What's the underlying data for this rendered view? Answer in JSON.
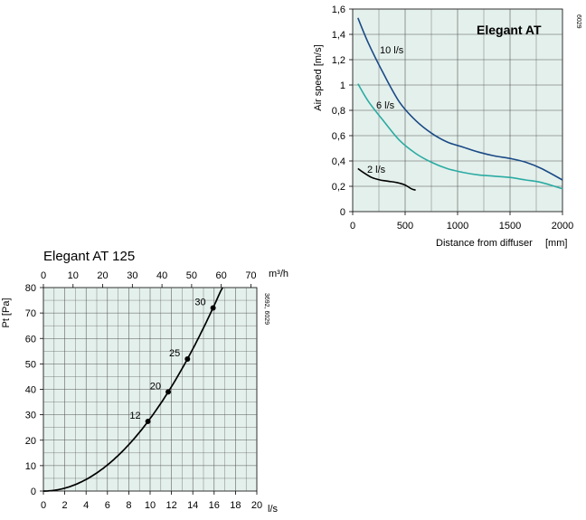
{
  "chart_data": [
    {
      "type": "line",
      "title": "Elegant AT",
      "side_code": "6029",
      "xlabel": "Distance from diffuser",
      "xunit": "[mm]",
      "ylabel": "Air speed [m/s]",
      "xlim": [
        0,
        2000
      ],
      "ylim": [
        0,
        1.6
      ],
      "xticks": [
        "0",
        "500",
        "1000",
        "1500",
        "2000"
      ],
      "yticks": [
        "0",
        "0,2",
        "0,4",
        "0,6",
        "0,8",
        "1",
        "1,2",
        "1,4",
        "1,6"
      ],
      "grid": true,
      "series": [
        {
          "name": "10 l/s",
          "color": "#1a4a86",
          "points": [
            [
              50,
              1.53
            ],
            [
              150,
              1.33
            ],
            [
              300,
              1.08
            ],
            [
              450,
              0.86
            ],
            [
              600,
              0.72
            ],
            [
              750,
              0.62
            ],
            [
              900,
              0.55
            ],
            [
              1050,
              0.51
            ],
            [
              1200,
              0.47
            ],
            [
              1350,
              0.44
            ],
            [
              1500,
              0.42
            ],
            [
              1650,
              0.39
            ],
            [
              1800,
              0.34
            ],
            [
              2000,
              0.25
            ]
          ]
        },
        {
          "name": "6 l/s",
          "color": "#2aaba2",
          "points": [
            [
              50,
              1.01
            ],
            [
              150,
              0.87
            ],
            [
              300,
              0.71
            ],
            [
              450,
              0.56
            ],
            [
              600,
              0.46
            ],
            [
              750,
              0.39
            ],
            [
              900,
              0.34
            ],
            [
              1050,
              0.31
            ],
            [
              1200,
              0.29
            ],
            [
              1350,
              0.28
            ],
            [
              1500,
              0.27
            ],
            [
              1650,
              0.25
            ],
            [
              1800,
              0.23
            ],
            [
              2000,
              0.18
            ]
          ]
        },
        {
          "name": "2 l/s",
          "color": "#000000",
          "points": [
            [
              50,
              0.34
            ],
            [
              100,
              0.31
            ],
            [
              180,
              0.27
            ],
            [
              260,
              0.25
            ],
            [
              340,
              0.24
            ],
            [
              420,
              0.23
            ],
            [
              500,
              0.21
            ],
            [
              560,
              0.18
            ],
            [
              600,
              0.17
            ]
          ]
        }
      ]
    },
    {
      "type": "line",
      "title": "Elegant AT 125",
      "side_code": "3692, 6029",
      "xlabel": "l/s",
      "x2label": "m³/h",
      "ylabel": "Pt [Pa]",
      "xlim": [
        0,
        20
      ],
      "x2lim": [
        0,
        72
      ],
      "ylim": [
        0,
        80
      ],
      "xticks": [
        "0",
        "2",
        "4",
        "6",
        "8",
        "10",
        "12",
        "14",
        "16",
        "18",
        "20"
      ],
      "x2ticks": [
        "0",
        "10",
        "20",
        "30",
        "40",
        "50",
        "60",
        "70"
      ],
      "yticks": [
        "0",
        "10",
        "20",
        "30",
        "40",
        "50",
        "60",
        "70",
        "80"
      ],
      "grid": true,
      "curve_color": "#000000",
      "curve_formula": "Pt = 0.285 * q^2",
      "x_end": 16.8,
      "markers": [
        {
          "label": "12",
          "x": 9.8,
          "y": 27.4
        },
        {
          "label": "20",
          "x": 11.7,
          "y": 39.0
        },
        {
          "label": "25",
          "x": 13.5,
          "y": 51.9
        },
        {
          "label": "30",
          "x": 15.9,
          "y": 72.0
        }
      ]
    }
  ]
}
